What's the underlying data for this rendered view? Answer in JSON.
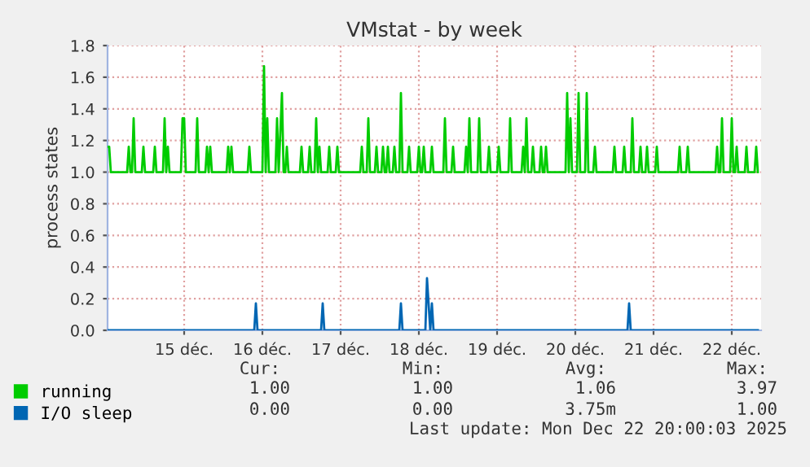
{
  "chart_data": {
    "type": "line",
    "title": "VMstat - by week",
    "ylabel": "process states",
    "xlim": [
      "2025-12-14T12:30",
      "2025-12-22T21:00"
    ],
    "xticks": [
      {
        "value": "2025-12-15T12:00",
        "label": "15 déc."
      },
      {
        "value": "2025-12-16T12:00",
        "label": "16 déc."
      },
      {
        "value": "2025-12-17T12:00",
        "label": "17 déc."
      },
      {
        "value": "2025-12-18T12:00",
        "label": "18 déc."
      },
      {
        "value": "2025-12-19T12:00",
        "label": "19 déc."
      },
      {
        "value": "2025-12-20T12:00",
        "label": "20 déc."
      },
      {
        "value": "2025-12-21T12:00",
        "label": "21 déc."
      },
      {
        "value": "2025-12-22T12:00",
        "label": "22 déc."
      }
    ],
    "ylim": [
      0,
      1.8
    ],
    "yticks": [
      {
        "value": 0,
        "label": "0.0"
      },
      {
        "value": 0.2,
        "label": "0.2"
      },
      {
        "value": 0.4,
        "label": "0.4"
      },
      {
        "value": 0.6,
        "label": "0.6"
      },
      {
        "value": 0.8,
        "label": "0.8"
      },
      {
        "value": 1.0,
        "label": "1.0"
      },
      {
        "value": 1.2,
        "label": "1.2"
      },
      {
        "value": 1.4,
        "label": "1.4"
      },
      {
        "value": 1.6,
        "label": "1.6"
      },
      {
        "value": 1.8,
        "label": "1.8"
      }
    ],
    "grid": true,
    "legend": "bottom",
    "marker": "none",
    "line_style": "solid",
    "series": [
      {
        "name": "running",
        "color": "#00cc00",
        "x": [
          "2025-12-14T12:30",
          "2025-12-14T13:00",
          "2025-12-14T13:30",
          "2025-12-14T18:30",
          "2025-12-14T19:00",
          "2025-12-14T19:30",
          "2025-12-14T20:00",
          "2025-12-14T20:30",
          "2025-12-14T21:00",
          "2025-12-14T23:00",
          "2025-12-14T23:30",
          "2025-12-15T00:00",
          "2025-12-15T02:30",
          "2025-12-15T03:00",
          "2025-12-15T03:30",
          "2025-12-15T05:30",
          "2025-12-15T06:00",
          "2025-12-15T06:30",
          "2025-12-15T07:00",
          "2025-12-15T07:30",
          "2025-12-15T11:00",
          "2025-12-15T11:30",
          "2025-12-15T12:00",
          "2025-12-15T12:30",
          "2025-12-15T15:30",
          "2025-12-15T16:00",
          "2025-12-15T16:30",
          "2025-12-15T18:30",
          "2025-12-15T19:00",
          "2025-12-15T19:30",
          "2025-12-15T20:00",
          "2025-12-15T20:30",
          "2025-12-16T01:00",
          "2025-12-16T01:30",
          "2025-12-16T02:00",
          "2025-12-16T02:30",
          "2025-12-16T03:00",
          "2025-12-16T07:30",
          "2025-12-16T08:00",
          "2025-12-16T08:30",
          "2025-12-16T12:00",
          "2025-12-16T12:30",
          "2025-12-16T13:00",
          "2025-12-16T13:30",
          "2025-12-16T14:00",
          "2025-12-16T16:00",
          "2025-12-16T16:30",
          "2025-12-16T17:00",
          "2025-12-16T18:00",
          "2025-12-16T18:30",
          "2025-12-16T19:00",
          "2025-12-16T19:30",
          "2025-12-16T20:00",
          "2025-12-16T23:30",
          "2025-12-17T00:00",
          "2025-12-17T00:30",
          "2025-12-17T02:00",
          "2025-12-17T02:30",
          "2025-12-17T03:00",
          "2025-12-17T04:00",
          "2025-12-17T04:30",
          "2025-12-17T05:00",
          "2025-12-17T05:30",
          "2025-12-17T06:00",
          "2025-12-17T08:00",
          "2025-12-17T08:30",
          "2025-12-17T09:00",
          "2025-12-17T10:30",
          "2025-12-17T11:00",
          "2025-12-17T11:30",
          "2025-12-17T18:00",
          "2025-12-17T18:30",
          "2025-12-17T19:00",
          "2025-12-17T20:00",
          "2025-12-17T20:30",
          "2025-12-17T21:00",
          "2025-12-17T22:30",
          "2025-12-17T23:00",
          "2025-12-17T23:30",
          "2025-12-18T00:30",
          "2025-12-18T01:00",
          "2025-12-18T01:30",
          "2025-12-18T02:00",
          "2025-12-18T02:30",
          "2025-12-18T03:00",
          "2025-12-18T04:00",
          "2025-12-18T04:30",
          "2025-12-18T05:00",
          "2025-12-18T06:00",
          "2025-12-18T06:30",
          "2025-12-18T07:00",
          "2025-12-18T08:30",
          "2025-12-18T09:00",
          "2025-12-18T09:30",
          "2025-12-18T11:30",
          "2025-12-18T12:00",
          "2025-12-18T12:30",
          "2025-12-18T13:00",
          "2025-12-18T13:30",
          "2025-12-18T14:00",
          "2025-12-18T15:30",
          "2025-12-18T16:00",
          "2025-12-18T16:30",
          "2025-12-18T19:30",
          "2025-12-18T20:00",
          "2025-12-18T20:30",
          "2025-12-18T22:00",
          "2025-12-18T22:30",
          "2025-12-18T23:00",
          "2025-12-19T02:00",
          "2025-12-19T02:30",
          "2025-12-19T03:00",
          "2025-12-19T03:30",
          "2025-12-19T04:00",
          "2025-12-19T06:00",
          "2025-12-19T06:30",
          "2025-12-19T07:00",
          "2025-12-19T09:00",
          "2025-12-19T09:30",
          "2025-12-19T10:00",
          "2025-12-19T12:00",
          "2025-12-19T12:30",
          "2025-12-19T13:00",
          "2025-12-19T15:30",
          "2025-12-19T16:00",
          "2025-12-19T16:30",
          "2025-12-19T19:30",
          "2025-12-19T20:00",
          "2025-12-19T20:30",
          "2025-12-19T21:00",
          "2025-12-19T21:30",
          "2025-12-19T22:30",
          "2025-12-19T23:00",
          "2025-12-19T23:30",
          "2025-12-20T01:00",
          "2025-12-20T01:30",
          "2025-12-20T02:00",
          "2025-12-20T02:30",
          "2025-12-20T03:00",
          "2025-12-20T03:30",
          "2025-12-20T09:00",
          "2025-12-20T09:30",
          "2025-12-20T10:00",
          "2025-12-20T10:30",
          "2025-12-20T11:00",
          "2025-12-20T12:30",
          "2025-12-20T13:00",
          "2025-12-20T13:30",
          "2025-12-20T15:00",
          "2025-12-20T15:30",
          "2025-12-20T16:00",
          "2025-12-20T17:30",
          "2025-12-20T18:00",
          "2025-12-20T18:30",
          "2025-12-20T23:30",
          "2025-12-21T00:00",
          "2025-12-21T00:30",
          "2025-12-21T02:30",
          "2025-12-21T03:00",
          "2025-12-21T03:30",
          "2025-12-21T05:00",
          "2025-12-21T05:30",
          "2025-12-21T06:00",
          "2025-12-21T07:30",
          "2025-12-21T08:00",
          "2025-12-21T08:30",
          "2025-12-21T09:30",
          "2025-12-21T10:00",
          "2025-12-21T10:30",
          "2025-12-21T12:30",
          "2025-12-21T13:00",
          "2025-12-21T13:30",
          "2025-12-21T19:30",
          "2025-12-21T20:00",
          "2025-12-21T20:30",
          "2025-12-21T22:00",
          "2025-12-21T22:30",
          "2025-12-21T23:00",
          "2025-12-22T07:00",
          "2025-12-22T07:30",
          "2025-12-22T08:00",
          "2025-12-22T08:30",
          "2025-12-22T09:00",
          "2025-12-22T09:30",
          "2025-12-22T11:30",
          "2025-12-22T12:00",
          "2025-12-22T12:30",
          "2025-12-22T13:00",
          "2025-12-22T13:30",
          "2025-12-22T14:00",
          "2025-12-22T16:00",
          "2025-12-22T16:30",
          "2025-12-22T17:00",
          "2025-12-22T19:00",
          "2025-12-22T19:30",
          "2025-12-22T20:00"
        ],
        "values": [
          1.16,
          1.16,
          1.0,
          1.0,
          1.16,
          1.0,
          1.0,
          1.34,
          1.0,
          1.0,
          1.16,
          1.0,
          1.0,
          1.16,
          1.0,
          1.0,
          1.34,
          1.0,
          1.16,
          1.0,
          1.0,
          1.34,
          1.34,
          1.0,
          1.0,
          1.34,
          1.0,
          1.0,
          1.16,
          1.0,
          1.16,
          1.0,
          1.0,
          1.16,
          1.0,
          1.16,
          1.0,
          1.0,
          1.16,
          1.0,
          1.0,
          1.67,
          1.0,
          1.34,
          1.0,
          1.0,
          1.34,
          1.0,
          1.5,
          1.0,
          1.0,
          1.16,
          1.0,
          1.0,
          1.16,
          1.0,
          1.0,
          1.16,
          1.0,
          1.0,
          1.34,
          1.0,
          1.16,
          1.0,
          1.0,
          1.16,
          1.0,
          1.0,
          1.16,
          1.0,
          1.0,
          1.16,
          1.0,
          1.0,
          1.34,
          1.0,
          1.0,
          1.16,
          1.0,
          1.0,
          1.16,
          1.0,
          1.0,
          1.16,
          1.0,
          1.0,
          1.16,
          1.0,
          1.0,
          1.5,
          1.0,
          1.0,
          1.16,
          1.0,
          1.0,
          1.16,
          1.0,
          1.0,
          1.16,
          1.0,
          1.0,
          1.16,
          1.0,
          1.0,
          1.34,
          1.0,
          1.0,
          1.16,
          1.0,
          1.0,
          1.16,
          1.0,
          1.34,
          1.0,
          1.0,
          1.34,
          1.0,
          1.0,
          1.16,
          1.0,
          1.0,
          1.16,
          1.0,
          1.0,
          1.34,
          1.0,
          1.0,
          1.16,
          1.0,
          1.34,
          1.0,
          1.0,
          1.16,
          1.0,
          1.0,
          1.16,
          1.0,
          1.0,
          1.16,
          1.0,
          1.0,
          1.5,
          1.0,
          1.34,
          1.0,
          1.0,
          1.5,
          1.0,
          1.0,
          1.5,
          1.0,
          1.0,
          1.16,
          1.0,
          1.0,
          1.16,
          1.0,
          1.0,
          1.16,
          1.0,
          1.0,
          1.34,
          1.0,
          1.0,
          1.16,
          1.0,
          1.0,
          1.16,
          1.0,
          1.0,
          1.16,
          1.0,
          1.0,
          1.16,
          1.0,
          1.0,
          1.16,
          1.0,
          1.0,
          1.16,
          1.0,
          1.0,
          1.34,
          1.0,
          1.0,
          1.34,
          1.0,
          1.0,
          1.16,
          1.0,
          1.0,
          1.16,
          1.0,
          1.0,
          1.16,
          1.0
        ]
      },
      {
        "name": "I/O sleep",
        "color": "#0066b3",
        "x": [
          "2025-12-14T12:30",
          "2025-12-16T09:30",
          "2025-12-16T10:00",
          "2025-12-16T10:30",
          "2025-12-17T06:00",
          "2025-12-17T06:30",
          "2025-12-17T07:00",
          "2025-12-18T06:00",
          "2025-12-18T06:30",
          "2025-12-18T07:00",
          "2025-12-18T14:00",
          "2025-12-18T14:30",
          "2025-12-18T15:30",
          "2025-12-18T16:00",
          "2025-12-18T16:30",
          "2025-12-21T04:00",
          "2025-12-21T04:30",
          "2025-12-21T05:00",
          "2025-12-22T20:00"
        ],
        "values": [
          0,
          0,
          0.17,
          0,
          0,
          0.17,
          0,
          0,
          0.17,
          0,
          0,
          0.33,
          0,
          0.17,
          0,
          0,
          0.17,
          0,
          0
        ]
      }
    ],
    "annotations": [
      "Cur:",
      "Min:",
      "Avg:",
      "Max:",
      "1.00",
      "1.00",
      "1.06",
      "3.97",
      "0.00",
      "0.00",
      "3.75m",
      "1.00",
      "Last update: Mon Dec 22 20:00:03 2025"
    ]
  }
}
